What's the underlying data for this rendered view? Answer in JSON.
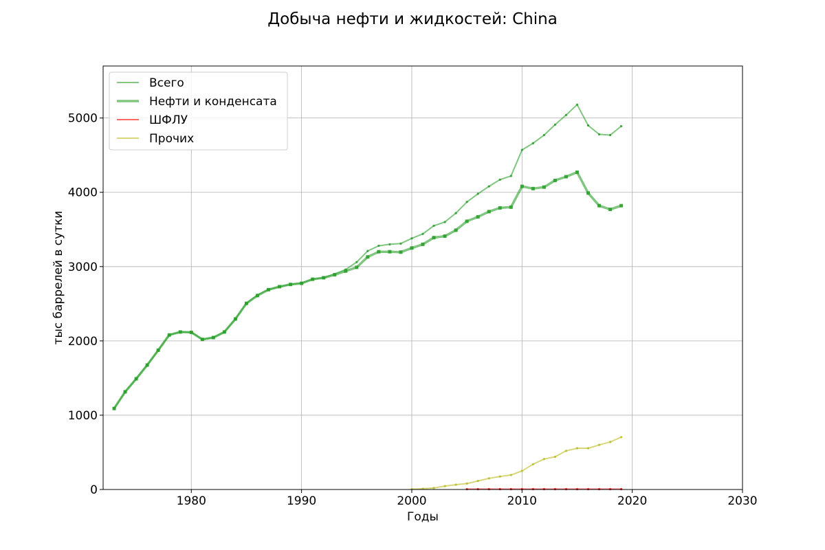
{
  "chart_data": {
    "type": "line",
    "title": "Добыча нефти и жидкостей: China",
    "xlabel": "Годы",
    "ylabel": "тыс баррелей в сутки",
    "xlim": [
      1972,
      2030
    ],
    "ylim": [
      0,
      5700
    ],
    "xticks": [
      1980,
      1990,
      2000,
      2010,
      2020,
      2030
    ],
    "yticks": [
      0,
      1000,
      2000,
      3000,
      4000,
      5000
    ],
    "grid": true,
    "legend_position": "top-left",
    "series": [
      {
        "name": "Всего",
        "color": "#2ca02c",
        "style": "thin",
        "x": [
          1973,
          1974,
          1975,
          1976,
          1977,
          1978,
          1979,
          1980,
          1981,
          1982,
          1983,
          1984,
          1985,
          1986,
          1987,
          1988,
          1989,
          1990,
          1991,
          1992,
          1993,
          1994,
          1995,
          1996,
          1997,
          1998,
          1999,
          2000,
          2001,
          2002,
          2003,
          2004,
          2005,
          2006,
          2007,
          2008,
          2009,
          2010,
          2011,
          2012,
          2013,
          2014,
          2015,
          2016,
          2017,
          2018,
          2019
        ],
        "values": [
          1090,
          1315,
          1490,
          1675,
          1875,
          2080,
          2120,
          2115,
          2020,
          2045,
          2120,
          2295,
          2505,
          2620,
          2690,
          2730,
          2760,
          2780,
          2830,
          2850,
          2900,
          2960,
          3060,
          3210,
          3280,
          3300,
          3310,
          3380,
          3440,
          3550,
          3600,
          3720,
          3870,
          3980,
          4080,
          4170,
          4220,
          4570,
          4660,
          4770,
          4910,
          5040,
          5180,
          4900,
          4780,
          4770,
          4890
        ]
      },
      {
        "name": "Нефти и конденсата",
        "color": "#2ca02c",
        "style": "thick",
        "x": [
          1973,
          1974,
          1975,
          1976,
          1977,
          1978,
          1979,
          1980,
          1981,
          1982,
          1983,
          1984,
          1985,
          1986,
          1987,
          1988,
          1989,
          1990,
          1991,
          1992,
          1993,
          1994,
          1995,
          1996,
          1997,
          1998,
          1999,
          2000,
          2001,
          2002,
          2003,
          2004,
          2005,
          2006,
          2007,
          2008,
          2009,
          2010,
          2011,
          2012,
          2013,
          2014,
          2015,
          2016,
          2017,
          2018,
          2019
        ],
        "values": [
          1090,
          1315,
          1490,
          1675,
          1875,
          2080,
          2120,
          2115,
          2020,
          2045,
          2120,
          2295,
          2505,
          2610,
          2690,
          2730,
          2760,
          2775,
          2830,
          2850,
          2890,
          2940,
          2990,
          3130,
          3200,
          3200,
          3195,
          3250,
          3300,
          3390,
          3410,
          3490,
          3610,
          3670,
          3740,
          3790,
          3800,
          4080,
          4050,
          4070,
          4160,
          4210,
          4270,
          3990,
          3820,
          3770,
          3820
        ]
      },
      {
        "name": "ШФЛУ",
        "color": "#ff0000",
        "style": "thin",
        "x": [
          2005,
          2006,
          2007,
          2008,
          2009,
          2010,
          2011,
          2012,
          2013,
          2014,
          2015,
          2016,
          2017,
          2018,
          2019
        ],
        "values": [
          5,
          5,
          5,
          5,
          5,
          5,
          5,
          5,
          5,
          5,
          5,
          5,
          5,
          5,
          5
        ]
      },
      {
        "name": "Прочих",
        "color": "#bcbd22",
        "style": "thin",
        "x": [
          2000,
          2001,
          2002,
          2003,
          2004,
          2005,
          2006,
          2007,
          2008,
          2009,
          2010,
          2011,
          2012,
          2013,
          2014,
          2015,
          2016,
          2017,
          2018,
          2019
        ],
        "values": [
          5,
          10,
          20,
          45,
          65,
          80,
          115,
          150,
          175,
          195,
          250,
          340,
          410,
          440,
          520,
          555,
          555,
          600,
          640,
          705
        ]
      }
    ]
  }
}
